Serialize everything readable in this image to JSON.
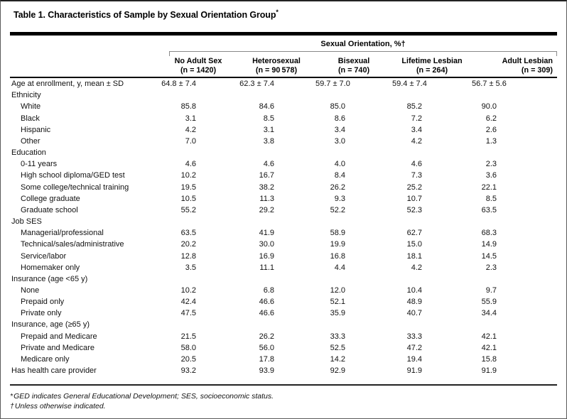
{
  "colors": {
    "text": "#111111",
    "rules": "#000000",
    "frame": "#5a5a5a",
    "bracket": "#888888"
  },
  "table": {
    "title": "Table 1. Characteristics of Sample by Sexual Orientation Group",
    "title_marker": "*",
    "spanner": "Sexual Orientation, %†",
    "columns": [
      {
        "name": "No Adult Sex",
        "n": "(n = 1420)"
      },
      {
        "name": "Heterosexual",
        "n": "(n = 90 578)"
      },
      {
        "name": "Bisexual",
        "n": "(n = 740)"
      },
      {
        "name": "Lifetime Lesbian",
        "n": "(n = 264)"
      },
      {
        "name": "Adult Lesbian",
        "n": "(n = 309)"
      }
    ],
    "rows": [
      {
        "label": "Age at enrollment, y, mean ± SD",
        "indent": 0,
        "values": [
          "64.8 ± 7.4",
          "62.3 ± 7.4",
          "59.7 ± 7.0",
          "59.4 ± 7.4",
          "56.7 ± 5.6"
        ]
      },
      {
        "label": "Ethnicity",
        "indent": 0,
        "values": []
      },
      {
        "label": "White",
        "indent": 1,
        "values": [
          "85.8",
          "84.6",
          "85.0",
          "85.2",
          "90.0"
        ]
      },
      {
        "label": "Black",
        "indent": 1,
        "values": [
          "3.1",
          "8.5",
          "8.6",
          "7.2",
          "6.2"
        ]
      },
      {
        "label": "Hispanic",
        "indent": 1,
        "values": [
          "4.2",
          "3.1",
          "3.4",
          "3.4",
          "2.6"
        ]
      },
      {
        "label": "Other",
        "indent": 1,
        "values": [
          "7.0",
          "3.8",
          "3.0",
          "4.2",
          "1.3"
        ]
      },
      {
        "label": "Education",
        "indent": 0,
        "values": []
      },
      {
        "label": "0-11 years",
        "indent": 1,
        "values": [
          "4.6",
          "4.6",
          "4.0",
          "4.6",
          "2.3"
        ]
      },
      {
        "label": "High school diploma/GED test",
        "indent": 1,
        "values": [
          "10.2",
          "16.7",
          "8.4",
          "7.3",
          "3.6"
        ]
      },
      {
        "label": "Some college/technical training",
        "indent": 1,
        "values": [
          "19.5",
          "38.2",
          "26.2",
          "25.2",
          "22.1"
        ]
      },
      {
        "label": "College graduate",
        "indent": 1,
        "values": [
          "10.5",
          "11.3",
          "9.3",
          "10.7",
          "8.5"
        ]
      },
      {
        "label": "Graduate school",
        "indent": 1,
        "values": [
          "55.2",
          "29.2",
          "52.2",
          "52.3",
          "63.5"
        ]
      },
      {
        "label": "Job SES",
        "indent": 0,
        "values": []
      },
      {
        "label": "Managerial/professional",
        "indent": 1,
        "values": [
          "63.5",
          "41.9",
          "58.9",
          "62.7",
          "68.3"
        ]
      },
      {
        "label": "Technical/sales/administrative",
        "indent": 1,
        "values": [
          "20.2",
          "30.0",
          "19.9",
          "15.0",
          "14.9"
        ]
      },
      {
        "label": "Service/labor",
        "indent": 1,
        "values": [
          "12.8",
          "16.9",
          "16.8",
          "18.1",
          "14.5"
        ]
      },
      {
        "label": "Homemaker only",
        "indent": 1,
        "values": [
          "3.5",
          "11.1",
          "4.4",
          "4.2",
          "2.3"
        ]
      },
      {
        "label": "Insurance (age <65 y)",
        "indent": 0,
        "values": []
      },
      {
        "label": "None",
        "indent": 1,
        "values": [
          "10.2",
          "6.8",
          "12.0",
          "10.4",
          "9.7"
        ]
      },
      {
        "label": "Prepaid only",
        "indent": 1,
        "values": [
          "42.4",
          "46.6",
          "52.1",
          "48.9",
          "55.9"
        ]
      },
      {
        "label": "Private only",
        "indent": 1,
        "values": [
          "47.5",
          "46.6",
          "35.9",
          "40.7",
          "34.4"
        ]
      },
      {
        "label": "Insurance, age (≥65 y)",
        "indent": 0,
        "values": []
      },
      {
        "label": "Prepaid and Medicare",
        "indent": 1,
        "values": [
          "21.5",
          "26.2",
          "33.3",
          "33.3",
          "42.1"
        ]
      },
      {
        "label": "Private and Medicare",
        "indent": 1,
        "values": [
          "58.0",
          "56.0",
          "52.5",
          "47.2",
          "42.1"
        ]
      },
      {
        "label": "Medicare only",
        "indent": 1,
        "values": [
          "20.5",
          "17.8",
          "14.2",
          "19.4",
          "15.8"
        ]
      },
      {
        "label": "Has health care provider",
        "indent": 0,
        "values": [
          "93.2",
          "93.9",
          "92.9",
          "91.9",
          "91.9"
        ]
      }
    ],
    "footnotes": [
      {
        "marker": "*",
        "text": "GED indicates General Educational Development; SES, socioeconomic status."
      },
      {
        "marker": "†",
        "text": "Unless otherwise indicated."
      }
    ]
  }
}
